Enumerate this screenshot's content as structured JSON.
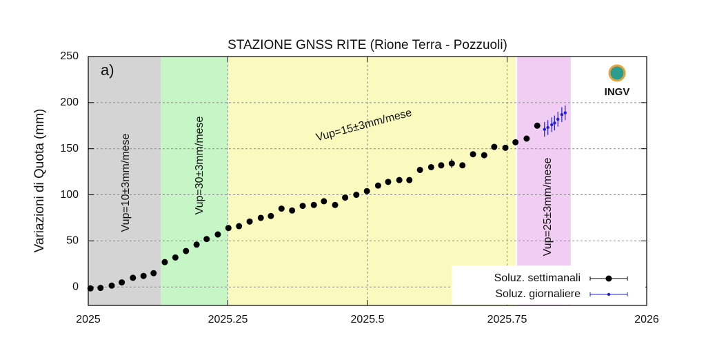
{
  "chart_data": {
    "type": "scatter",
    "title": "STAZIONE GNSS RITE (Rione Terra - Pozzuoli)",
    "panel_label": "a)",
    "logo": "INGV",
    "y_label": "Variazioni di Quota (mm)",
    "xlim": [
      2025,
      2026
    ],
    "xticks": [
      2025,
      2025.25,
      2025.5,
      2025.75,
      2026
    ],
    "ylim": [
      -20,
      250
    ],
    "yticks": [
      0,
      50,
      100,
      150,
      200,
      250
    ],
    "grid": true,
    "legend": "lower right",
    "regions": [
      {
        "start": 2025,
        "end": 2025.13,
        "color": "#d4d4d4",
        "label": "Vup=10±3mm/mese"
      },
      {
        "start": 2025.13,
        "end": 2025.25,
        "color": "#c6f5c6",
        "label": "Vup=30±3mm/mese"
      },
      {
        "start": 2025.25,
        "end": 2025.765,
        "color": "#fafabe",
        "label": "Vup=15±3mm/mese"
      },
      {
        "start": 2025.768,
        "end": 2025.864,
        "color": "#f1ccf3",
        "label": "Vup=25±3mm/mese"
      }
    ],
    "series": [
      {
        "name": "Soluz. settimanali",
        "color": "#000000",
        "x": [
          2025.004,
          2025.022,
          2025.042,
          2025.06,
          2025.08,
          2025.099,
          2025.117,
          2025.137,
          2025.156,
          2025.175,
          2025.194,
          2025.212,
          2025.232,
          2025.251,
          2025.27,
          2025.289,
          2025.309,
          2025.327,
          2025.346,
          2025.365,
          2025.384,
          2025.404,
          2025.422,
          2025.442,
          2025.46,
          2025.48,
          2025.499,
          2025.519,
          2025.537,
          2025.557,
          2025.575,
          2025.594,
          2025.614,
          2025.632,
          2025.651,
          2025.67,
          2025.689,
          2025.709,
          2025.727,
          2025.747,
          2025.765,
          2025.785,
          2025.804
        ],
        "values": [
          -1.5,
          -1,
          1.5,
          5,
          10,
          12,
          15,
          27,
          32,
          39,
          46,
          52,
          57,
          64,
          66,
          71,
          75,
          77,
          85,
          83,
          88,
          89,
          93,
          89,
          97,
          100,
          104,
          110,
          114,
          116,
          116,
          127,
          130,
          132,
          134,
          132,
          144,
          143,
          152,
          151,
          157,
          161,
          175
        ],
        "errors": [
          3,
          3,
          3,
          3,
          3,
          3,
          3,
          3,
          3,
          3,
          3,
          3,
          3,
          3,
          3,
          3,
          3,
          3,
          3,
          3,
          3,
          3,
          3,
          3,
          3,
          3,
          3,
          3,
          3,
          3,
          3,
          3,
          3,
          3,
          5,
          3,
          3,
          3,
          3,
          3,
          3,
          3,
          3
        ]
      },
      {
        "name": "Soluz. giornaliere",
        "color": "#1f1fd0",
        "x": [
          2025.817,
          2025.823,
          2025.83,
          2025.835,
          2025.841,
          2025.848,
          2025.854
        ],
        "values": [
          171,
          173,
          176,
          178,
          182,
          187,
          189
        ],
        "errors": [
          8,
          8,
          8,
          8,
          8,
          8,
          8
        ]
      }
    ]
  }
}
